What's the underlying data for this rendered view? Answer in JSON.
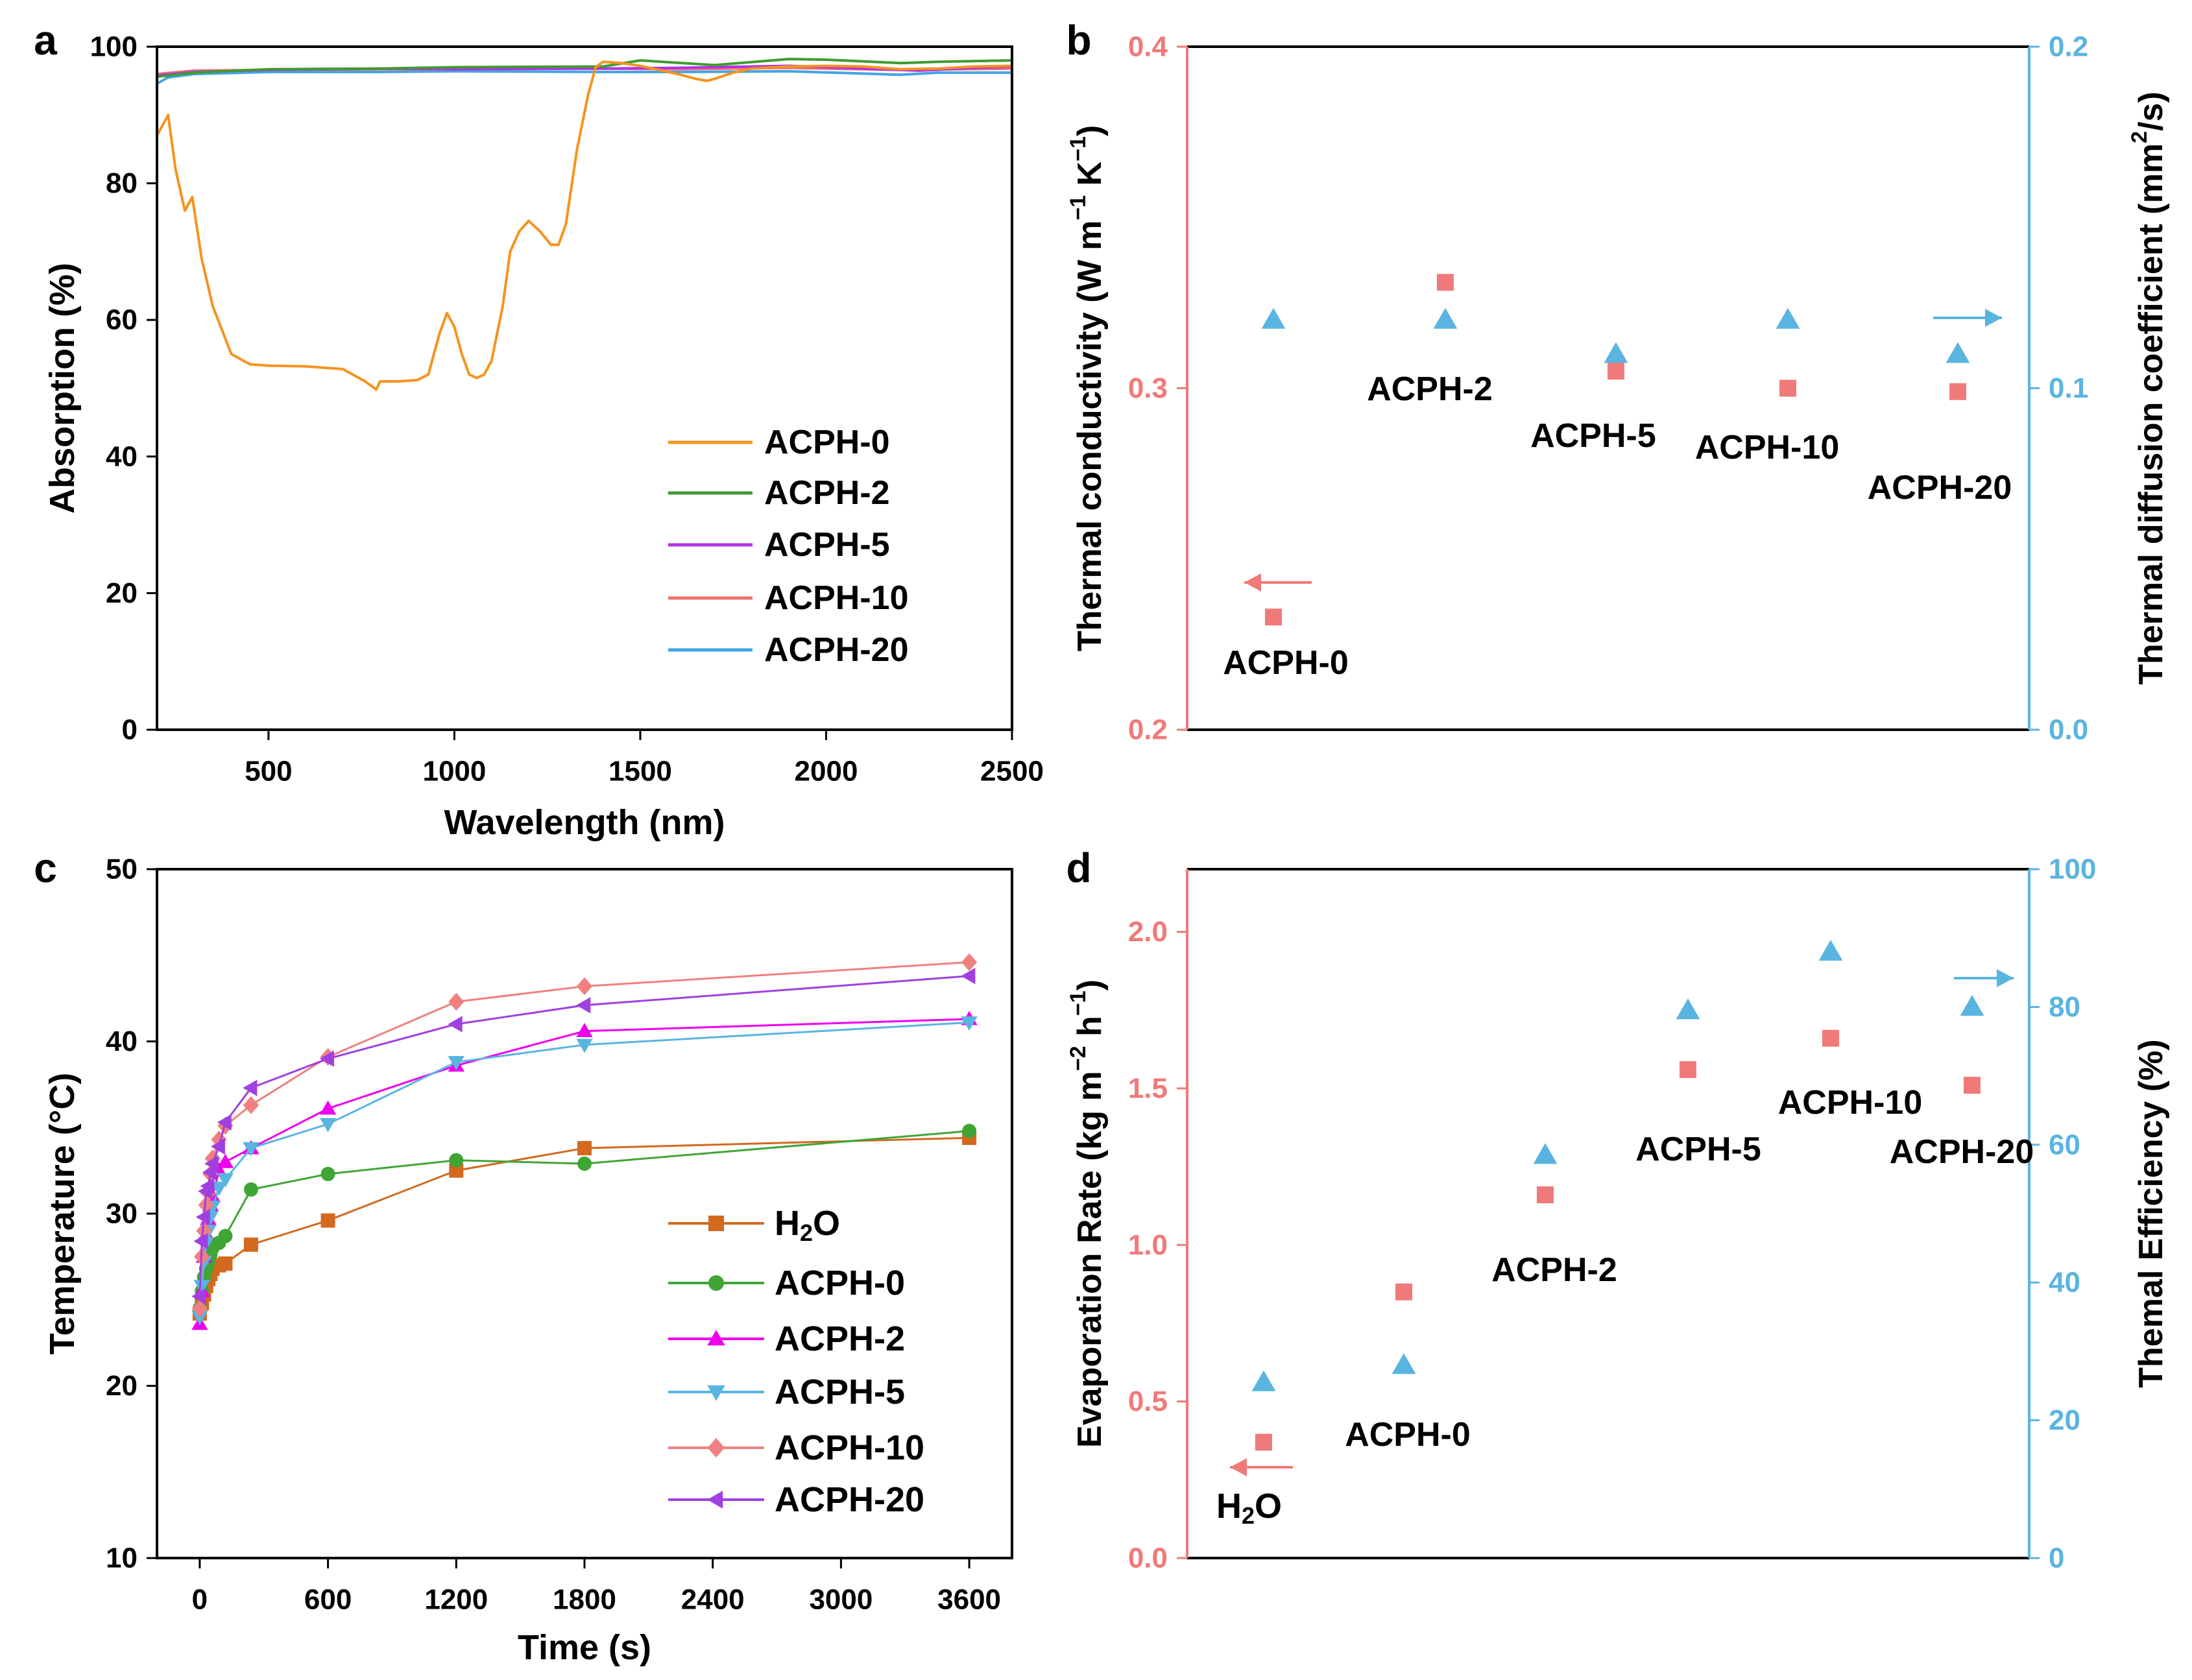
{
  "chart_data": [
    {
      "panel": "a",
      "type": "line",
      "xlabel": "Wavelength (nm)",
      "ylabel": "Absorption (%)",
      "xlim": [
        200,
        2500
      ],
      "ylim": [
        0,
        100
      ],
      "xticks": [
        500,
        1000,
        1500,
        2000,
        2500
      ],
      "yticks": [
        0,
        20,
        40,
        60,
        80,
        100
      ],
      "legend_position": "lower-right",
      "series": [
        {
          "name": "ACPH-0",
          "color": "#f5931e",
          "x": [
            200,
            230,
            250,
            275,
            295,
            320,
            350,
            400,
            450,
            500,
            600,
            700,
            760,
            790,
            800,
            850,
            900,
            930,
            960,
            980,
            1000,
            1020,
            1040,
            1060,
            1080,
            1100,
            1130,
            1150,
            1175,
            1200,
            1230,
            1260,
            1280,
            1300,
            1330,
            1360,
            1380,
            1400,
            1450,
            1500,
            1550,
            1600,
            1650,
            1680,
            1700,
            1750,
            1800,
            1900,
            2000,
            2100,
            2200,
            2300,
            2400,
            2500
          ],
          "y": [
            87,
            90,
            82,
            76,
            78,
            69,
            62,
            55,
            53.5,
            53.3,
            53.2,
            52.8,
            51,
            49.8,
            51,
            51,
            51.2,
            52,
            58,
            61,
            59,
            55,
            52,
            51.5,
            52,
            54,
            62,
            70,
            73,
            74.5,
            73,
            71,
            71,
            74,
            85,
            93,
            97,
            97.8,
            97.6,
            97.2,
            96.6,
            96,
            95.3,
            95,
            95.3,
            96.2,
            96.8,
            97.1,
            97.2,
            97.1,
            96.7,
            96.8,
            97.1,
            97.2
          ]
        },
        {
          "name": "ACPH-2",
          "color": "#3f9c2e",
          "x": [
            200,
            300,
            500,
            800,
            1000,
            1400,
            1500,
            1700,
            1900,
            2000,
            2200,
            2300,
            2500
          ],
          "y": [
            95.6,
            96.2,
            96.7,
            96.8,
            97,
            97.1,
            98,
            97.3,
            98.2,
            98.1,
            97.6,
            97.8,
            98
          ]
        },
        {
          "name": "ACPH-5",
          "color": "#b233e8",
          "x": [
            200,
            300,
            500,
            800,
            1000,
            1400,
            1600,
            1900,
            2100,
            2250,
            2400,
            2500
          ],
          "y": [
            95.8,
            96.3,
            96.6,
            96.8,
            96.7,
            96.8,
            96.9,
            97.2,
            96.8,
            96.5,
            96.9,
            97.1
          ]
        },
        {
          "name": "ACPH-10",
          "color": "#f07070",
          "x": [
            200,
            300,
            500,
            800,
            1000,
            1400,
            1600,
            1900,
            2200,
            2500
          ],
          "y": [
            96,
            96.5,
            96.6,
            96.7,
            96.7,
            96.8,
            96.7,
            96.9,
            96.6,
            96.8
          ]
        },
        {
          "name": "ACPH-20",
          "color": "#42a5e8",
          "x": [
            200,
            230,
            300,
            500,
            800,
            1000,
            1400,
            1600,
            1900,
            2200,
            2300,
            2500
          ],
          "y": [
            94.6,
            95.5,
            96,
            96.3,
            96.3,
            96.4,
            96.3,
            96.3,
            96.4,
            95.9,
            96.2,
            96.2
          ]
        }
      ]
    },
    {
      "panel": "b",
      "type": "scatter",
      "ylabel_left": "Thermal conductivity (W m−1 K−1)",
      "ylabel_right": "Thermal diffusion coefficient (mm2/s)",
      "ylim_left": [
        0.2,
        0.4
      ],
      "ylim_right": [
        0.0,
        0.2
      ],
      "yticks_left": [
        "0.2",
        "0.3",
        "0.4"
      ],
      "yticks_right": [
        "0.0",
        "0.1",
        "0.2"
      ],
      "left_color": "#f07a7a",
      "right_color": "#5ab4e0",
      "categories": [
        "ACPH-0",
        "ACPH-2",
        "ACPH-5",
        "ACPH-10",
        "ACPH-20"
      ],
      "series": [
        {
          "name": "Thermal conductivity",
          "axis": "left",
          "marker": "square",
          "values": [
            0.233,
            0.331,
            0.305,
            0.3,
            0.299
          ]
        },
        {
          "name": "Thermal diffusion coefficient",
          "axis": "right",
          "marker": "triangle",
          "values": [
            0.12,
            0.12,
            0.11,
            0.12,
            0.11
          ]
        }
      ],
      "annotation_labels": [
        "ACPH-0",
        "ACPH-2",
        "ACPH-5",
        "ACPH-10",
        "ACPH-20"
      ]
    },
    {
      "panel": "c",
      "type": "line",
      "xlabel": "Time (s)",
      "ylabel": "Temperature (°C)",
      "xlim": [
        -200,
        3800
      ],
      "ylim": [
        10,
        50
      ],
      "xticks": [
        0,
        600,
        1200,
        1800,
        2400,
        3000,
        3600
      ],
      "yticks": [
        10,
        20,
        30,
        40,
        50
      ],
      "legend_position": "lower-right",
      "series": [
        {
          "name": "H2O",
          "color": "#d2691e",
          "marker": "square",
          "x": [
            0,
            10,
            20,
            30,
            40,
            50,
            60,
            90,
            120,
            240,
            600,
            1200,
            1800,
            3600
          ],
          "y": [
            24.2,
            24.8,
            25.3,
            25.8,
            26.2,
            26.5,
            26.8,
            27,
            27.1,
            28.2,
            29.6,
            32.5,
            33.8,
            34.4
          ]
        },
        {
          "name": "ACPH-0",
          "color": "#3fa535",
          "marker": "circle",
          "x": [
            0,
            10,
            20,
            30,
            40,
            50,
            60,
            90,
            120,
            240,
            600,
            1200,
            1800,
            3600
          ],
          "y": [
            24.5,
            25.5,
            26.3,
            26.8,
            27.2,
            27.6,
            28,
            28.3,
            28.7,
            31.4,
            32.3,
            33.1,
            32.9,
            34.8
          ]
        },
        {
          "name": "ACPH-2",
          "color": "#ee00ee",
          "marker": "triangle-up",
          "x": [
            0,
            10,
            20,
            30,
            40,
            50,
            60,
            90,
            120,
            240,
            600,
            1200,
            1800,
            3600
          ],
          "y": [
            23.6,
            25.5,
            27.5,
            28.8,
            29.7,
            30.5,
            31,
            32.5,
            33,
            33.8,
            36.1,
            38.6,
            40.6,
            41.3
          ]
        },
        {
          "name": "ACPH-5",
          "color": "#5ab4e0",
          "marker": "triangle-down",
          "x": [
            0,
            10,
            20,
            30,
            40,
            50,
            60,
            90,
            120,
            240,
            600,
            1200,
            1800,
            3600
          ],
          "y": [
            24,
            25.8,
            27.2,
            28.3,
            29,
            29.8,
            30.4,
            31.5,
            32,
            33.8,
            35.2,
            38.8,
            39.8,
            41.1
          ]
        },
        {
          "name": "ACPH-10",
          "color": "#f08080",
          "marker": "diamond",
          "x": [
            0,
            10,
            20,
            30,
            40,
            50,
            60,
            90,
            120,
            240,
            600,
            1200,
            1800,
            3600
          ],
          "y": [
            24.5,
            27.5,
            29,
            30.5,
            31.2,
            32.3,
            33.2,
            34.3,
            35.1,
            36.3,
            39.1,
            42.3,
            43.2,
            44.6
          ]
        },
        {
          "name": "ACPH-20",
          "color": "#a040e0",
          "marker": "triangle-left",
          "x": [
            0,
            10,
            20,
            30,
            40,
            50,
            60,
            90,
            120,
            240,
            600,
            1200,
            1800,
            3600
          ],
          "y": [
            25.2,
            28.4,
            29.8,
            31.3,
            31.6,
            32.4,
            32.9,
            33.9,
            35.3,
            37.3,
            39,
            41,
            42.1,
            43.8
          ]
        }
      ]
    },
    {
      "panel": "d",
      "type": "scatter",
      "ylabel_left": "Evaporation Rate (kg m−2 h−1)",
      "ylabel_right": "Themal Efficiency (%)",
      "ylim_left": [
        0.0,
        2.2
      ],
      "ylim_right": [
        0,
        100
      ],
      "yticks_left": [
        "0.0",
        "0.5",
        "1.0",
        "1.5",
        "2.0"
      ],
      "yticks_right": [
        "0",
        "20",
        "40",
        "60",
        "80",
        "100"
      ],
      "left_color": "#f07a7a",
      "right_color": "#5ab4e0",
      "categories": [
        "H2O",
        "ACPH-0",
        "ACPH-2",
        "ACPH-5",
        "ACPH-10",
        "ACPH-20"
      ],
      "series": [
        {
          "name": "Evaporation Rate",
          "axis": "left",
          "marker": "square",
          "values": [
            0.37,
            0.85,
            1.16,
            1.56,
            1.66,
            1.51
          ]
        },
        {
          "name": "Themal Efficiency",
          "axis": "right",
          "marker": "triangle",
          "values": [
            25.5,
            28,
            58.5,
            79.5,
            88,
            80
          ]
        }
      ],
      "annotation_labels": [
        "ACPH-0",
        "ACPH-2",
        "ACPH-5",
        "ACPH-10",
        "ACPH-20"
      ]
    }
  ],
  "panel_letters": [
    "a",
    "b",
    "c",
    "d"
  ],
  "legend_labels": {
    "a": [
      "ACPH-0",
      "ACPH-2",
      "ACPH-5",
      "ACPH-10",
      "ACPH-20"
    ],
    "c": [
      "ACPH-0",
      "ACPH-2",
      "ACPH-5",
      "ACPH-10",
      "ACPH-20"
    ]
  },
  "h2o_label": {
    "main": "H",
    "sub": "2",
    "tail": "O"
  }
}
